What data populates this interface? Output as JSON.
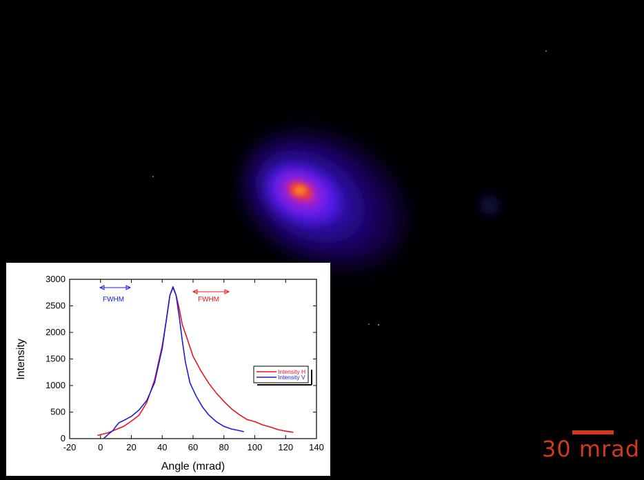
{
  "scale_bar": {
    "label": "30 mrad",
    "color": "#d23a1e"
  },
  "annotations": {
    "fwhm_v": "FWHM",
    "fwhm_h": "FWHM"
  },
  "colors": {
    "h": "#e8141c",
    "v": "#1a1adc"
  },
  "chart_data": {
    "type": "line",
    "xlabel": "Angle (mrad)",
    "ylabel": "Intensity",
    "xlim": [
      -20,
      140
    ],
    "ylim": [
      0,
      3000
    ],
    "xticks": [
      -20,
      0,
      20,
      40,
      60,
      80,
      100,
      120,
      140
    ],
    "yticks": [
      0,
      500,
      1000,
      1500,
      2000,
      2500,
      3000
    ],
    "legend_position": "right",
    "series": [
      {
        "name": "Intensity H",
        "color": "#e8141c",
        "x": [
          -2,
          5,
          10,
          15,
          20,
          25,
          30,
          35,
          40,
          43,
          45,
          47,
          49,
          51,
          53,
          56,
          60,
          65,
          70,
          75,
          80,
          85,
          90,
          95,
          100,
          105,
          110,
          115,
          120,
          125
        ],
        "y": [
          60,
          110,
          170,
          230,
          330,
          440,
          680,
          1100,
          1750,
          2300,
          2700,
          2840,
          2700,
          2450,
          2150,
          1900,
          1550,
          1280,
          1050,
          860,
          700,
          560,
          450,
          360,
          320,
          260,
          220,
          170,
          140,
          120
        ]
      },
      {
        "name": "Intensity V",
        "color": "#1a1adc",
        "x": [
          2,
          5,
          8,
          10,
          12,
          15,
          20,
          25,
          30,
          35,
          40,
          43,
          45,
          47,
          49,
          51,
          53,
          55,
          58,
          62,
          66,
          70,
          75,
          80,
          85,
          90,
          93
        ],
        "y": [
          0,
          80,
          150,
          230,
          300,
          340,
          420,
          540,
          720,
          1050,
          1700,
          2300,
          2700,
          2860,
          2700,
          2300,
          1850,
          1450,
          1050,
          800,
          600,
          450,
          320,
          230,
          180,
          150,
          130
        ]
      }
    ]
  }
}
